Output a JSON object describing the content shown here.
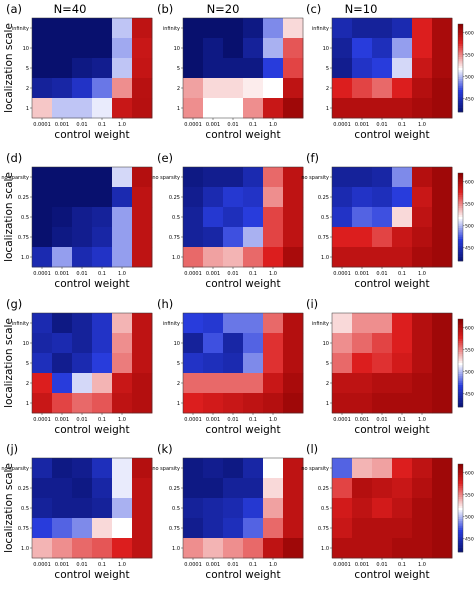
{
  "column_titles": [
    "N=40",
    "N=20",
    "N=10"
  ],
  "panel_labels": [
    "(a)",
    "(b)",
    "(c)",
    "(d)",
    "(e)",
    "(f)",
    "(g)",
    "(h)",
    "(i)",
    "(j)",
    "(k)",
    "(l)"
  ],
  "xlabel": "control weight",
  "ylabel": "localization scale",
  "x_ticks": [
    "0.0001",
    "0.001",
    "0.01",
    "0.1",
    "1.0"
  ],
  "y_ticks_scale": [
    "infinity",
    "10",
    "5",
    "2",
    "1"
  ],
  "y_ticks_sparsity": [
    "no sparsity",
    "0.25",
    "0.5",
    "0.75",
    "1.0"
  ],
  "colorbar_ticks": [
    "6000",
    "5500",
    "5000",
    "4500"
  ],
  "colorbar_range": [
    4200,
    6200
  ],
  "colors": {
    "low": "#08106e",
    "mid": "#ffffff",
    "high": "#8b0000"
  },
  "chart_data": [
    {
      "panel": "(a)",
      "type": "heatmap",
      "y_ticks": "scale",
      "values": [
        [
          4200,
          4200,
          4200,
          4200,
          5050,
          5950
        ],
        [
          4200,
          4200,
          4200,
          4200,
          4980,
          5900
        ],
        [
          4200,
          4200,
          4300,
          4350,
          5050,
          5920
        ],
        [
          4400,
          4450,
          4600,
          4850,
          5500,
          5980
        ],
        [
          5350,
          5050,
          5050,
          5150,
          5900,
          5990
        ]
      ]
    },
    {
      "panel": "(b)",
      "type": "heatmap",
      "y_ticks": "scale",
      "values": [
        [
          4200,
          4200,
          4200,
          4300,
          4900,
          5300
        ],
        [
          4200,
          4300,
          4200,
          4400,
          5000,
          5650
        ],
        [
          4200,
          4300,
          4300,
          4300,
          4700,
          5700
        ],
        [
          5450,
          5300,
          5300,
          5250,
          5200,
          5950
        ],
        [
          5500,
          5200,
          5200,
          5500,
          5900,
          6100
        ]
      ]
    },
    {
      "panel": "(c)",
      "type": "heatmap",
      "y_ticks": "scale",
      "values": [
        [
          4500,
          4400,
          4400,
          4500,
          5800,
          6050
        ],
        [
          4400,
          4700,
          4550,
          4950,
          5800,
          6050
        ],
        [
          4350,
          4600,
          4700,
          5100,
          5900,
          6050
        ],
        [
          5800,
          5700,
          5600,
          5800,
          6000,
          6100
        ],
        [
          6000,
          6000,
          6000,
          6000,
          6050,
          6100
        ]
      ]
    },
    {
      "panel": "(d)",
      "type": "heatmap",
      "y_ticks": "sparsity",
      "values": [
        [
          4200,
          4200,
          4200,
          4200,
          5100,
          6000
        ],
        [
          4200,
          4200,
          4200,
          4200,
          4500,
          5950
        ],
        [
          4200,
          4250,
          4350,
          4400,
          4950,
          5950
        ],
        [
          4200,
          4300,
          4350,
          4450,
          4950,
          5950
        ],
        [
          4500,
          4950,
          4500,
          4600,
          4950,
          5950
        ]
      ]
    },
    {
      "panel": "(e)",
      "type": "heatmap",
      "y_ticks": "sparsity",
      "values": [
        [
          4300,
          4350,
          4350,
          4500,
          5600,
          5950
        ],
        [
          4350,
          4500,
          4650,
          4600,
          5500,
          5950
        ],
        [
          4400,
          4650,
          4550,
          4700,
          5700,
          5950
        ],
        [
          4400,
          4450,
          4750,
          5000,
          5700,
          5950
        ],
        [
          5600,
          5450,
          5400,
          5600,
          5800,
          6050
        ]
      ]
    },
    {
      "panel": "(f)",
      "type": "heatmap",
      "y_ticks": "sparsity",
      "values": [
        [
          4400,
          4400,
          4450,
          4900,
          6000,
          6100
        ],
        [
          4500,
          4600,
          4550,
          4700,
          5900,
          6100
        ],
        [
          4600,
          4800,
          4750,
          5300,
          5950,
          6100
        ],
        [
          5800,
          5800,
          5700,
          5900,
          6000,
          6100
        ],
        [
          5950,
          5950,
          5950,
          5950,
          6050,
          6100
        ]
      ]
    },
    {
      "panel": "(g)",
      "type": "heatmap",
      "y_ticks": "scale",
      "values": [
        [
          4500,
          4300,
          4400,
          4600,
          5400,
          5950
        ],
        [
          4450,
          4500,
          4400,
          4600,
          5500,
          5950
        ],
        [
          4550,
          4350,
          4500,
          4700,
          5550,
          5950
        ],
        [
          5800,
          4700,
          5100,
          5400,
          5900,
          6000
        ],
        [
          5900,
          5700,
          5600,
          5650,
          5950,
          6000
        ]
      ]
    },
    {
      "panel": "(h)",
      "type": "heatmap",
      "y_ticks": "scale",
      "values": [
        [
          4700,
          4650,
          4850,
          4850,
          5600,
          6000
        ],
        [
          4400,
          4750,
          4450,
          4800,
          5750,
          6000
        ],
        [
          4600,
          4550,
          4500,
          4900,
          5750,
          6000
        ],
        [
          5600,
          5600,
          5600,
          5600,
          5900,
          6050
        ],
        [
          5800,
          5850,
          5900,
          5950,
          6000,
          6100
        ]
      ]
    },
    {
      "panel": "(i)",
      "type": "heatmap",
      "y_ticks": "scale",
      "values": [
        [
          5300,
          5500,
          5500,
          5800,
          6000,
          6100
        ],
        [
          5500,
          5600,
          5700,
          5800,
          6000,
          6100
        ],
        [
          5600,
          5800,
          5750,
          5850,
          6000,
          6100
        ],
        [
          5950,
          5950,
          6000,
          6000,
          6050,
          6100
        ],
        [
          6000,
          6000,
          6050,
          6050,
          6050,
          6100
        ]
      ]
    },
    {
      "panel": "(j)",
      "type": "heatmap",
      "y_ticks": "sparsity",
      "values": [
        [
          4450,
          4300,
          4350,
          4550,
          5150,
          6000
        ],
        [
          4350,
          4350,
          4300,
          4450,
          5150,
          5950
        ],
        [
          4400,
          4350,
          4350,
          4400,
          5000,
          5950
        ],
        [
          4700,
          4800,
          4900,
          5300,
          5200,
          5950
        ],
        [
          5400,
          5500,
          5600,
          5650,
          5800,
          5950
        ]
      ]
    },
    {
      "panel": "(k)",
      "type": "heatmap",
      "y_ticks": "sparsity",
      "values": [
        [
          4300,
          4350,
          4300,
          4450,
          5200,
          5950
        ],
        [
          4300,
          4300,
          4400,
          4400,
          5300,
          5950
        ],
        [
          4400,
          4450,
          4500,
          4650,
          5450,
          5950
        ],
        [
          4350,
          4450,
          4550,
          4800,
          5600,
          5950
        ],
        [
          5500,
          5400,
          5500,
          5600,
          5950,
          6100
        ]
      ]
    },
    {
      "panel": "(l)",
      "type": "heatmap",
      "y_ticks": "sparsity",
      "values": [
        [
          4800,
          5400,
          5450,
          5800,
          5950,
          6100
        ],
        [
          5700,
          6000,
          5950,
          5900,
          6000,
          6100
        ],
        [
          5850,
          5950,
          5850,
          5950,
          6050,
          6100
        ],
        [
          5900,
          6000,
          6000,
          6000,
          6050,
          6100
        ],
        [
          6000,
          6000,
          6000,
          6050,
          6050,
          6100
        ]
      ]
    }
  ]
}
